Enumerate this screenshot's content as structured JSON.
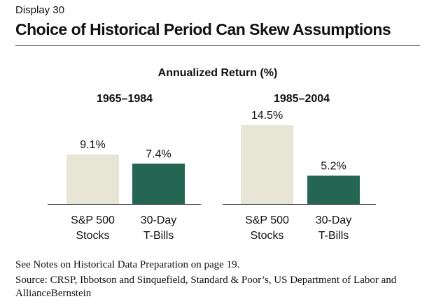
{
  "display_label": "Display 30",
  "title": "Choice of Historical Period Can Skew Assumptions",
  "chart_data": {
    "type": "bar",
    "title": "Annualized Return (%)",
    "ylabel": "",
    "ylim": [
      0,
      15
    ],
    "categories": [
      "S&P 500|Stocks",
      "30-Day|T-Bills"
    ],
    "groups": [
      {
        "name": "1965–1984",
        "bars": [
          {
            "category": "S&P 500|Stocks",
            "value": 9.1,
            "label": "9.1%"
          },
          {
            "category": "30-Day|T-Bills",
            "value": 7.4,
            "label": "7.4%"
          }
        ]
      },
      {
        "name": "1985–2004",
        "bars": [
          {
            "category": "S&P 500|Stocks",
            "value": 14.5,
            "label": "14.5%"
          },
          {
            "category": "30-Day|T-Bills",
            "value": 5.2,
            "label": "5.2%"
          }
        ]
      }
    ],
    "colors": {
      "stocks": "#e7e5d6",
      "tbills": "#246651",
      "axis": "#333333"
    }
  },
  "notes": {
    "line1": "See Notes on Historical Data Preparation on page 19.",
    "line2": "Source: CRSP, Ibbotson and Sinquefield, Standard & Poor’s, US Department of Labor and AllianceBernstein"
  }
}
